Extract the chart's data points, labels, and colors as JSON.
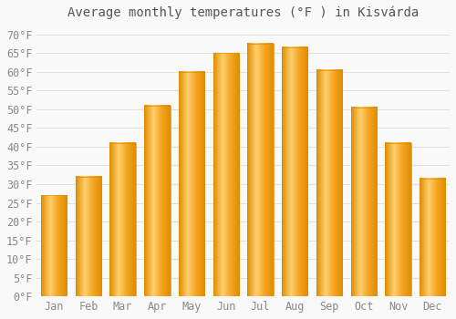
{
  "title": "Average monthly temperatures (°F ) in Kisvárda",
  "months": [
    "Jan",
    "Feb",
    "Mar",
    "Apr",
    "May",
    "Jun",
    "Jul",
    "Aug",
    "Sep",
    "Oct",
    "Nov",
    "Dec"
  ],
  "values": [
    27,
    32,
    41,
    51,
    60,
    65,
    67.5,
    66.5,
    60.5,
    50.5,
    41,
    31.5
  ],
  "bar_color_left": "#F5A623",
  "bar_color_center": "#FFD070",
  "bar_color_right": "#E08C00",
  "background_color": "#f9f9f9",
  "grid_color": "#dddddd",
  "ylim": [
    0,
    72
  ],
  "yticks": [
    0,
    5,
    10,
    15,
    20,
    25,
    30,
    35,
    40,
    45,
    50,
    55,
    60,
    65,
    70
  ],
  "title_fontsize": 10,
  "tick_fontsize": 8.5,
  "tick_color": "#888888",
  "title_color": "#555555",
  "bar_width": 0.75
}
